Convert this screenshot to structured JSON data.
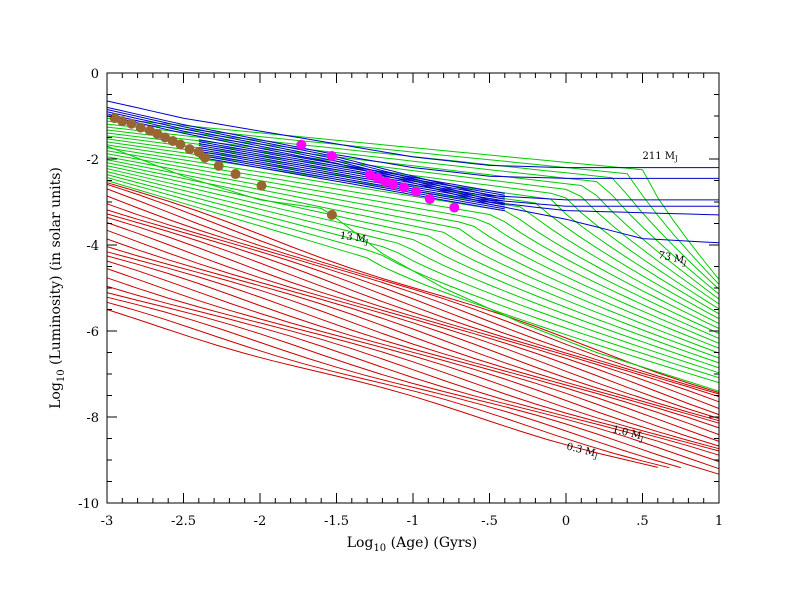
{
  "chart_data": {
    "type": "line",
    "xlabel_parts": [
      "Log",
      "10",
      " (Age) (Gyrs)"
    ],
    "ylabel_parts": [
      "Log",
      "10",
      " (Luminosity) (in solar units)"
    ],
    "xlim": [
      -3,
      1
    ],
    "ylim": [
      -10,
      0
    ],
    "x_ticks": [
      -3,
      -2.5,
      -2,
      -1.5,
      -1,
      -0.5,
      0,
      0.5,
      1
    ],
    "x_tick_labels": [
      "-3",
      "-2.5",
      "-2",
      "-1.5",
      "-1",
      "-.5",
      "0",
      ".5",
      "1"
    ],
    "y_ticks": [
      0,
      -2,
      -4,
      -6,
      -8,
      -10
    ],
    "y_tick_labels": [
      "0",
      "-2",
      "-4",
      "-6",
      "-8",
      "-10"
    ],
    "colors": {
      "star": "#0000cc",
      "brown_dwarf": "#00cc00",
      "planet": "#cc0000",
      "brown_dot": "#996633",
      "magenta_dot": "#ff00ff"
    },
    "annotations": [
      {
        "text": "211 M",
        "sub": "J",
        "x": 0.5,
        "y": -2.0,
        "angle": 0
      },
      {
        "text": "73 M",
        "sub": "J",
        "x": 0.6,
        "y": -4.3,
        "angle": 12
      },
      {
        "text": "13 M",
        "sub": "J",
        "x": -1.48,
        "y": -3.85,
        "angle": 8
      },
      {
        "text": "1.0 M",
        "sub": "J",
        "x": 0.3,
        "y": -8.35,
        "angle": 14
      },
      {
        "text": "0.3 M",
        "sub": "J",
        "x": 0.0,
        "y": -8.75,
        "angle": 14
      }
    ],
    "star_tracks": [
      [
        [
          -3,
          -0.65
        ],
        [
          -2.5,
          -1.05
        ],
        [
          -2,
          -1.35
        ],
        [
          -1.5,
          -1.65
        ],
        [
          -1,
          -1.95
        ],
        [
          -0.5,
          -2.15
        ],
        [
          0,
          -2.2
        ],
        [
          1,
          -2.2
        ]
      ],
      [
        [
          -3,
          -0.8
        ],
        [
          -2.5,
          -1.2
        ],
        [
          -2,
          -1.55
        ],
        [
          -1.5,
          -1.9
        ],
        [
          -1,
          -2.2
        ],
        [
          -0.5,
          -2.4
        ],
        [
          0,
          -2.45
        ],
        [
          1,
          -2.45
        ]
      ],
      [
        [
          -3,
          -0.85
        ],
        [
          -2.5,
          -1.25
        ],
        [
          -2,
          -1.6
        ],
        [
          -1.5,
          -1.95
        ],
        [
          -1,
          -2.4
        ],
        [
          -0.5,
          -2.85
        ],
        [
          0,
          -2.95
        ],
        [
          1,
          -2.95
        ]
      ],
      [
        [
          -3,
          -0.9
        ],
        [
          -2.5,
          -1.3
        ],
        [
          -2,
          -1.65
        ],
        [
          -1.5,
          -2.0
        ],
        [
          -1,
          -2.45
        ],
        [
          -0.5,
          -2.95
        ],
        [
          0,
          -3.1
        ],
        [
          1,
          -3.1
        ]
      ],
      [
        [
          -3,
          -0.95
        ],
        [
          -2.5,
          -1.35
        ],
        [
          -2,
          -1.7
        ],
        [
          -1.5,
          -2.05
        ],
        [
          -1,
          -2.5
        ],
        [
          -0.5,
          -3.0
        ],
        [
          0,
          -3.2
        ],
        [
          1,
          -3.3
        ]
      ],
      [
        [
          -3,
          -1.0
        ],
        [
          -2.5,
          -1.4
        ],
        [
          -2,
          -1.75
        ],
        [
          -1.5,
          -2.1
        ],
        [
          -1,
          -2.55
        ],
        [
          -0.5,
          -3.05
        ],
        [
          0,
          -3.4
        ],
        [
          0.5,
          -3.85
        ],
        [
          1,
          -3.95
        ]
      ]
    ],
    "brown_dwarf_tracks": {
      "count": 22,
      "start_y": [
        -1.05,
        -2.5
      ],
      "end_y": [
        -4.8,
        -7.2
      ]
    },
    "deuterium_track": [
      [
        -3,
        -1.7
      ],
      [
        -2.5,
        -2.4
      ],
      [
        -2,
        -2.95
      ],
      [
        -1.6,
        -3.15
      ],
      [
        -1.53,
        -3.3
      ],
      [
        -1.2,
        -4.2
      ],
      [
        -0.8,
        -5.0
      ],
      [
        -0.3,
        -5.8
      ],
      [
        0.2,
        -6.5
      ],
      [
        1,
        -7.4
      ]
    ],
    "planet_tracks": {
      "count": 22,
      "start_y": [
        -2.55,
        -5.55
      ],
      "end_y": [
        -7.4,
        -9.6
      ],
      "end_x_last": [
        0.75,
        0.6
      ]
    },
    "brown_points": [
      {
        "x": -2.95,
        "y": -1.05
      },
      {
        "x": -2.9,
        "y": -1.12
      },
      {
        "x": -2.84,
        "y": -1.18
      },
      {
        "x": -2.78,
        "y": -1.27
      },
      {
        "x": -2.72,
        "y": -1.34
      },
      {
        "x": -2.67,
        "y": -1.42
      },
      {
        "x": -2.62,
        "y": -1.5
      },
      {
        "x": -2.57,
        "y": -1.58
      },
      {
        "x": -2.52,
        "y": -1.66
      },
      {
        "x": -2.46,
        "y": -1.77
      },
      {
        "x": -2.4,
        "y": -1.84
      },
      {
        "x": -2.36,
        "y": -1.97
      },
      {
        "x": -2.27,
        "y": -2.16
      },
      {
        "x": -2.16,
        "y": -2.35
      },
      {
        "x": -1.99,
        "y": -2.62
      },
      {
        "x": -1.53,
        "y": -3.3
      }
    ],
    "magenta_points": [
      {
        "x": -1.73,
        "y": -1.67
      },
      {
        "x": -1.53,
        "y": -1.93
      },
      {
        "x": -1.28,
        "y": -2.37
      },
      {
        "x": -1.23,
        "y": -2.44
      },
      {
        "x": -1.18,
        "y": -2.53
      },
      {
        "x": -1.13,
        "y": -2.59
      },
      {
        "x": -1.06,
        "y": -2.66
      },
      {
        "x": -0.98,
        "y": -2.76
      },
      {
        "x": -0.89,
        "y": -2.93
      },
      {
        "x": -0.73,
        "y": -3.13
      }
    ]
  }
}
